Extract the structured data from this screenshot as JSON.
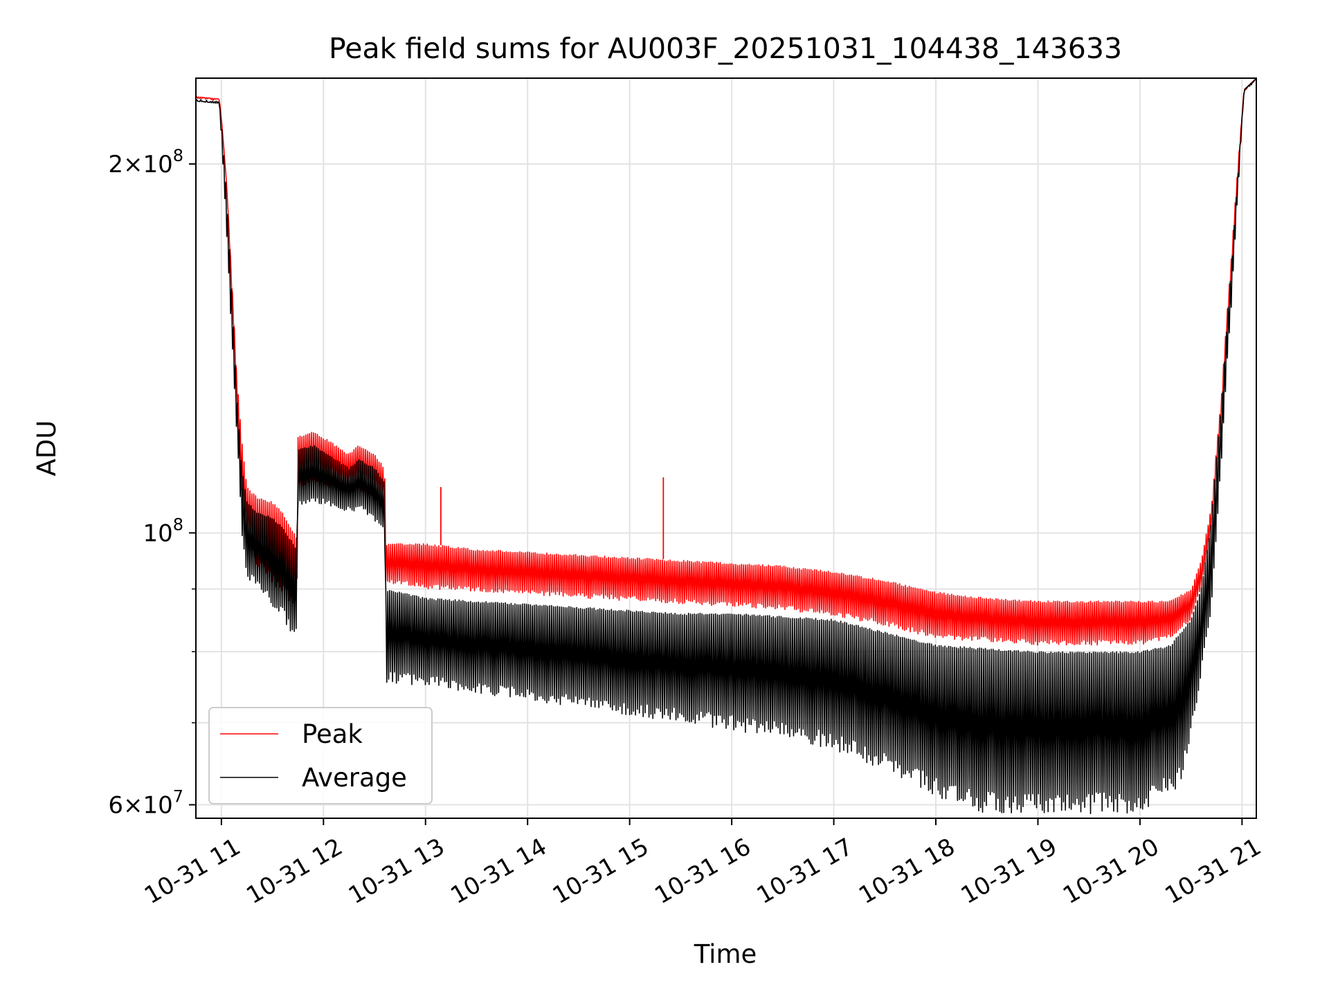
{
  "chart_data": {
    "type": "line",
    "title": "Peak field sums for AU003F_20251031_104438_143633",
    "xlabel": "Time",
    "ylabel": "ADU",
    "yscale": "log",
    "xlim_hours": [
      10.75,
      21.14
    ],
    "ylim": [
      58500000,
      235000000
    ],
    "grid": true,
    "legend_placement": "lower-left",
    "x_ticks": [
      {
        "value": 11,
        "label": "10-31 11"
      },
      {
        "value": 12,
        "label": "10-31 12"
      },
      {
        "value": 13,
        "label": "10-31 13"
      },
      {
        "value": 14,
        "label": "10-31 14"
      },
      {
        "value": 15,
        "label": "10-31 15"
      },
      {
        "value": 16,
        "label": "10-31 16"
      },
      {
        "value": 17,
        "label": "10-31 17"
      },
      {
        "value": 18,
        "label": "10-31 18"
      },
      {
        "value": 19,
        "label": "10-31 19"
      },
      {
        "value": 20,
        "label": "10-31 20"
      },
      {
        "value": 21,
        "label": "10-31 21"
      }
    ],
    "y_ticks_major": [
      {
        "value": 60000000,
        "mant": "6",
        "exp": "7"
      },
      {
        "value": 100000000,
        "mant": "",
        "exp": "8"
      },
      {
        "value": 200000000,
        "mant": "2",
        "exp": "8"
      }
    ],
    "y_ticks_minor": [
      70000000,
      80000000,
      90000000
    ],
    "series": [
      {
        "name": "Peak",
        "color": "#ff0000",
        "envelope_top": [
          [
            10.75,
            227000000.0
          ],
          [
            10.98,
            226000000.0
          ],
          [
            11.0,
            218000000.0
          ],
          [
            11.05,
            193000000.0
          ],
          [
            11.1,
            162000000.0
          ],
          [
            11.15,
            135000000.0
          ],
          [
            11.2,
            119000000.0
          ],
          [
            11.25,
            109000000.0
          ],
          [
            11.35,
            107000000.0
          ],
          [
            11.5,
            106000000.0
          ],
          [
            11.6,
            104000000.0
          ],
          [
            11.74,
            99000000.0
          ],
          [
            11.75,
            120000000.0
          ],
          [
            11.9,
            121000000.0
          ],
          [
            12.05,
            119000000.0
          ],
          [
            12.25,
            116000000.0
          ],
          [
            12.35,
            118000000.0
          ],
          [
            12.5,
            116000000.0
          ],
          [
            12.6,
            113000000.0
          ],
          [
            12.61,
            98000000.0
          ],
          [
            13.0,
            98000000.0
          ],
          [
            13.5,
            97000000.0
          ],
          [
            14.0,
            96500000.0
          ],
          [
            14.5,
            96000000.0
          ],
          [
            15.0,
            95500000.0
          ],
          [
            15.5,
            95000000.0
          ],
          [
            16.0,
            94500000.0
          ],
          [
            16.5,
            94000000.0
          ],
          [
            17.0,
            93000000.0
          ],
          [
            17.5,
            91500000.0
          ],
          [
            18.0,
            89500000.0
          ],
          [
            18.5,
            88500000.0
          ],
          [
            19.0,
            88000000.0
          ],
          [
            19.5,
            88000000.0
          ],
          [
            20.0,
            88000000.0
          ],
          [
            20.3,
            88000000.0
          ],
          [
            20.5,
            90000000.0
          ],
          [
            20.6,
            95000000.0
          ],
          [
            20.7,
            105000000.0
          ],
          [
            20.8,
            130000000.0
          ],
          [
            20.9,
            170000000.0
          ],
          [
            20.97,
            205000000.0
          ],
          [
            21.02,
            230000000.0
          ],
          [
            21.14,
            235000000.0
          ]
        ],
        "envelope_bottom": [
          [
            10.75,
            227000000.0
          ],
          [
            10.98,
            226000000.0
          ],
          [
            11.0,
            218000000.0
          ],
          [
            11.05,
            193000000.0
          ],
          [
            11.1,
            158000000.0
          ],
          [
            11.15,
            130000000.0
          ],
          [
            11.2,
            105000000.0
          ],
          [
            11.25,
            98000000.0
          ],
          [
            11.35,
            94000000.0
          ],
          [
            11.5,
            91000000.0
          ],
          [
            11.6,
            89000000.0
          ],
          [
            11.74,
            87000000.0
          ],
          [
            11.75,
            109000000.0
          ],
          [
            11.9,
            110000000.0
          ],
          [
            12.05,
            109000000.0
          ],
          [
            12.25,
            108000000.0
          ],
          [
            12.4,
            108000000.0
          ],
          [
            12.6,
            106000000.0
          ],
          [
            12.61,
            91000000.0
          ],
          [
            13.0,
            90000000.0
          ],
          [
            13.5,
            89500000.0
          ],
          [
            14.0,
            89000000.0
          ],
          [
            14.5,
            88500000.0
          ],
          [
            15.0,
            88000000.0
          ],
          [
            15.5,
            87500000.0
          ],
          [
            16.0,
            87000000.0
          ],
          [
            16.5,
            86500000.0
          ],
          [
            17.0,
            85500000.0
          ],
          [
            17.5,
            84000000.0
          ],
          [
            18.0,
            82000000.0
          ],
          [
            18.5,
            81500000.0
          ],
          [
            19.0,
            81000000.0
          ],
          [
            19.5,
            81000000.0
          ],
          [
            20.0,
            81000000.0
          ],
          [
            20.3,
            82000000.0
          ],
          [
            20.5,
            85000000.0
          ],
          [
            20.6,
            90000000.0
          ],
          [
            20.7,
            100000000.0
          ],
          [
            20.8,
            125000000.0
          ],
          [
            20.9,
            165000000.0
          ],
          [
            20.97,
            200000000.0
          ],
          [
            21.02,
            230000000.0
          ],
          [
            21.14,
            235000000.0
          ]
        ],
        "spikes": [
          [
            13.15,
            109000000.0
          ],
          [
            15.33,
            111000000.0
          ]
        ]
      },
      {
        "name": "Average",
        "color": "#000000",
        "envelope_top": [
          [
            10.75,
            226000000.0
          ],
          [
            10.98,
            225000000.0
          ],
          [
            11.0,
            216000000.0
          ],
          [
            11.05,
            190000000.0
          ],
          [
            11.1,
            158000000.0
          ],
          [
            11.15,
            130000000.0
          ],
          [
            11.2,
            113000000.0
          ],
          [
            11.25,
            106000000.0
          ],
          [
            11.35,
            104000000.0
          ],
          [
            11.5,
            103000000.0
          ],
          [
            11.6,
            101000000.0
          ],
          [
            11.74,
            97000000.0
          ],
          [
            11.75,
            117000000.0
          ],
          [
            11.9,
            118000000.0
          ],
          [
            12.05,
            116000000.0
          ],
          [
            12.25,
            113000000.0
          ],
          [
            12.35,
            115000000.0
          ],
          [
            12.5,
            113000000.0
          ],
          [
            12.6,
            110000000.0
          ],
          [
            12.61,
            90000000.0
          ],
          [
            13.0,
            88500000.0
          ],
          [
            13.5,
            88000000.0
          ],
          [
            14.0,
            87500000.0
          ],
          [
            14.5,
            87000000.0
          ],
          [
            15.0,
            86500000.0
          ],
          [
            15.5,
            86000000.0
          ],
          [
            16.0,
            86000000.0
          ],
          [
            16.5,
            85500000.0
          ],
          [
            17.0,
            85000000.0
          ],
          [
            17.5,
            83000000.0
          ],
          [
            18.0,
            81000000.0
          ],
          [
            18.5,
            80500000.0
          ],
          [
            19.0,
            80000000.0
          ],
          [
            19.5,
            80000000.0
          ],
          [
            20.0,
            80000000.0
          ],
          [
            20.3,
            81000000.0
          ],
          [
            20.5,
            85000000.0
          ],
          [
            20.6,
            90000000.0
          ],
          [
            20.7,
            102000000.0
          ],
          [
            20.8,
            127000000.0
          ],
          [
            20.9,
            167000000.0
          ],
          [
            20.97,
            202000000.0
          ],
          [
            21.02,
            230000000.0
          ],
          [
            21.14,
            235000000.0
          ]
        ],
        "envelope_bottom": [
          [
            10.75,
            225000000.0
          ],
          [
            10.98,
            224000000.0
          ],
          [
            11.0,
            210000000.0
          ],
          [
            11.05,
            175000000.0
          ],
          [
            11.1,
            145000000.0
          ],
          [
            11.15,
            120000000.0
          ],
          [
            11.2,
            100000000.0
          ],
          [
            11.25,
            92000000.0
          ],
          [
            11.35,
            90000000.0
          ],
          [
            11.5,
            87000000.0
          ],
          [
            11.6,
            85000000.0
          ],
          [
            11.74,
            81500000.0
          ],
          [
            11.75,
            105000000.0
          ],
          [
            11.9,
            106000000.0
          ],
          [
            12.05,
            105000000.0
          ],
          [
            12.25,
            104000000.0
          ],
          [
            12.4,
            104000000.0
          ],
          [
            12.6,
            100000000.0
          ],
          [
            12.61,
            75500000.0
          ],
          [
            13.0,
            75000000.0
          ],
          [
            13.5,
            74000000.0
          ],
          [
            14.0,
            73000000.0
          ],
          [
            14.5,
            72000000.0
          ],
          [
            15.0,
            71000000.0
          ],
          [
            15.5,
            70000000.0
          ],
          [
            16.0,
            69000000.0
          ],
          [
            16.5,
            68000000.0
          ],
          [
            17.0,
            66500000.0
          ],
          [
            17.5,
            64000000.0
          ],
          [
            18.0,
            61000000.0
          ],
          [
            18.3,
            59500000.0
          ],
          [
            18.5,
            59000000.0
          ],
          [
            19.0,
            59000000.0
          ],
          [
            19.5,
            59000000.0
          ],
          [
            20.0,
            59000000.0
          ],
          [
            20.4,
            62000000.0
          ],
          [
            20.55,
            72000000.0
          ],
          [
            20.7,
            85000000.0
          ],
          [
            20.8,
            115000000.0
          ],
          [
            20.9,
            155000000.0
          ],
          [
            20.97,
            195000000.0
          ],
          [
            21.02,
            230000000.0
          ],
          [
            21.14,
            235000000.0
          ]
        ]
      }
    ]
  }
}
